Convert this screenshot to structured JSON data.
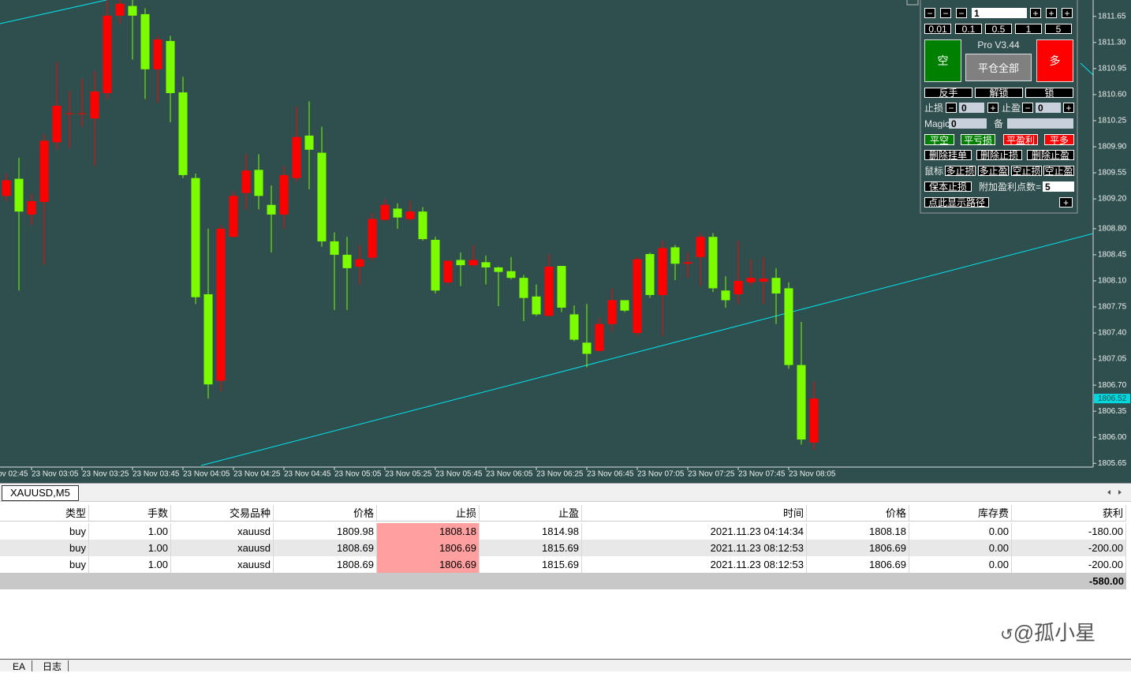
{
  "chart_data": {
    "type": "candlestick",
    "up_color": "#ff0000",
    "down_color": "#7cfc00",
    "ylim": [
      1805.6,
      1811.87
    ],
    "xlim": [
      -0.5,
      86.125
    ],
    "yticks": [
      {
        "value": 1811.65,
        "label": "1811.65"
      },
      {
        "value": 1811.3,
        "label": "1811.30"
      },
      {
        "value": 1810.95,
        "label": "1810.95"
      },
      {
        "value": 1810.6,
        "label": "1810.60"
      },
      {
        "value": 1810.25,
        "label": "1810.25"
      },
      {
        "value": 1809.9,
        "label": "1809.90"
      },
      {
        "value": 1809.55,
        "label": "1809.55"
      },
      {
        "value": 1809.2,
        "label": "1809.20"
      },
      {
        "value": 1808.8,
        "label": "1808.80"
      },
      {
        "value": 1808.45,
        "label": "1808.45"
      },
      {
        "value": 1808.1,
        "label": "1808.10"
      },
      {
        "value": 1807.75,
        "label": "1807.75"
      },
      {
        "value": 1807.4,
        "label": "1807.40"
      },
      {
        "value": 1807.05,
        "label": "1807.05"
      },
      {
        "value": 1806.7,
        "label": "1806.70"
      },
      {
        "value": 1806.35,
        "label": "1806.35"
      },
      {
        "value": 1806.0,
        "label": "1806.00"
      },
      {
        "value": 1805.65,
        "label": "1805.65"
      }
    ],
    "xticks": [
      {
        "value": -2,
        "label": "23 Nov 02:45"
      },
      {
        "value": 2,
        "label": "23 Nov 03:05"
      },
      {
        "value": 6,
        "label": "23 Nov 03:25"
      },
      {
        "value": 10,
        "label": "23 Nov 03:45"
      },
      {
        "value": 14,
        "label": "23 Nov 04:05"
      },
      {
        "value": 18,
        "label": "23 Nov 04:25"
      },
      {
        "value": 22,
        "label": "23 Nov 04:45"
      },
      {
        "value": 26,
        "label": "23 Nov 05:05"
      },
      {
        "value": 30,
        "label": "23 Nov 05:25"
      },
      {
        "value": 34,
        "label": "23 Nov 05:45"
      },
      {
        "value": 38,
        "label": "23 Nov 06:05"
      },
      {
        "value": 42,
        "label": "23 Nov 06:25"
      },
      {
        "value": 46,
        "label": "23 Nov 06:45"
      },
      {
        "value": 50,
        "label": "23 Nov 07:05"
      },
      {
        "value": 54,
        "label": "23 Nov 07:25"
      },
      {
        "value": 58,
        "label": "23 Nov 07:45"
      },
      {
        "value": 62,
        "label": "23 Nov 08:05"
      }
    ],
    "last_price": {
      "value": 1806.52,
      "label": "1806.52"
    },
    "ohlc": [
      [
        1809.24,
        1809.54,
        1809.17,
        1809.45
      ],
      [
        1809.47,
        1809.75,
        1807.97,
        1809.03
      ],
      [
        1808.99,
        1809.27,
        1808.85,
        1809.17
      ],
      [
        1809.16,
        1810.07,
        1808.32,
        1809.98
      ],
      [
        1809.96,
        1811.04,
        1809.86,
        1810.45
      ],
      [
        1810.35,
        1810.65,
        1809.88,
        1810.35
      ],
      [
        1810.34,
        1810.81,
        1810.17,
        1810.35
      ],
      [
        1810.28,
        1810.92,
        1809.64,
        1810.64
      ],
      [
        1810.62,
        1811.9,
        1810.54,
        1811.66
      ],
      [
        1811.66,
        1811.9,
        1811.55,
        1811.82
      ],
      [
        1811.79,
        1811.9,
        1811.07,
        1811.66
      ],
      [
        1811.68,
        1811.76,
        1810.54,
        1810.94
      ],
      [
        1810.94,
        1811.39,
        1810.49,
        1811.34
      ],
      [
        1811.32,
        1811.39,
        1810.23,
        1810.62
      ],
      [
        1810.63,
        1810.84,
        1809.48,
        1809.52
      ],
      [
        1809.48,
        1809.54,
        1807.79,
        1807.88
      ],
      [
        1807.92,
        1808.8,
        1806.52,
        1806.71
      ],
      [
        1806.76,
        1808.85,
        1806.62,
        1808.8
      ],
      [
        1808.69,
        1809.3,
        1808.69,
        1809.24
      ],
      [
        1809.28,
        1809.8,
        1809.06,
        1809.58
      ],
      [
        1809.59,
        1809.8,
        1809.06,
        1809.24
      ],
      [
        1809.12,
        1809.38,
        1808.48,
        1808.99
      ],
      [
        1808.99,
        1809.64,
        1808.8,
        1809.52
      ],
      [
        1809.48,
        1810.44,
        1809.43,
        1810.03
      ],
      [
        1810.05,
        1810.51,
        1809.33,
        1809.86
      ],
      [
        1809.82,
        1810.17,
        1808.56,
        1808.63
      ],
      [
        1808.63,
        1808.75,
        1807.71,
        1808.45
      ],
      [
        1808.45,
        1808.69,
        1807.71,
        1808.27
      ],
      [
        1808.29,
        1808.58,
        1808.05,
        1808.39
      ],
      [
        1808.41,
        1809.01,
        1808.37,
        1808.93
      ],
      [
        1808.92,
        1809.2,
        1808.9,
        1809.12
      ],
      [
        1809.07,
        1809.14,
        1808.8,
        1808.95
      ],
      [
        1808.93,
        1809.17,
        1808.9,
        1809.03
      ],
      [
        1809.03,
        1809.09,
        1808.64,
        1808.66
      ],
      [
        1808.65,
        1808.69,
        1807.93,
        1807.97
      ],
      [
        1808.08,
        1808.37,
        1808.05,
        1808.37
      ],
      [
        1808.38,
        1808.48,
        1808.03,
        1808.31
      ],
      [
        1808.31,
        1808.58,
        1808.29,
        1808.38
      ],
      [
        1808.35,
        1808.44,
        1808.05,
        1808.28
      ],
      [
        1808.28,
        1808.29,
        1807.76,
        1808.22
      ],
      [
        1808.23,
        1808.42,
        1808.12,
        1808.14
      ],
      [
        1808.14,
        1808.18,
        1807.56,
        1807.87
      ],
      [
        1807.89,
        1808.05,
        1807.63,
        1807.65
      ],
      [
        1807.63,
        1808.46,
        1807.63,
        1808.29
      ],
      [
        1808.3,
        1808.3,
        1807.68,
        1807.74
      ],
      [
        1807.65,
        1807.77,
        1807.29,
        1807.31
      ],
      [
        1807.27,
        1807.79,
        1806.94,
        1807.12
      ],
      [
        1807.16,
        1807.6,
        1807.15,
        1807.52
      ],
      [
        1807.52,
        1808.0,
        1807.42,
        1807.84
      ],
      [
        1807.84,
        1807.84,
        1807.68,
        1807.7
      ],
      [
        1807.4,
        1808.42,
        1807.36,
        1808.39
      ],
      [
        1808.46,
        1808.48,
        1807.87,
        1807.91
      ],
      [
        1807.91,
        1808.64,
        1807.36,
        1808.54
      ],
      [
        1808.55,
        1808.58,
        1808.11,
        1808.33
      ],
      [
        1808.33,
        1808.48,
        1808.14,
        1808.35
      ],
      [
        1808.42,
        1808.74,
        1808.03,
        1808.69
      ],
      [
        1808.69,
        1808.74,
        1807.95,
        1808.0
      ],
      [
        1807.97,
        1808.16,
        1807.74,
        1807.84
      ],
      [
        1807.92,
        1808.64,
        1807.79,
        1808.1
      ],
      [
        1808.08,
        1808.39,
        1808.03,
        1808.14
      ],
      [
        1808.09,
        1808.42,
        1807.79,
        1808.13
      ],
      [
        1808.14,
        1808.27,
        1807.52,
        1807.93
      ],
      [
        1808.0,
        1808.08,
        1806.92,
        1806.97
      ],
      [
        1806.97,
        1807.55,
        1805.9,
        1805.97
      ],
      [
        1805.93,
        1806.75,
        1805.83,
        1806.52
      ]
    ]
  },
  "panel": {
    "items": [
      "−",
      "−",
      "−",
      "1",
      "+",
      "+",
      "+",
      "0.01",
      "0.1",
      "0.5",
      "1",
      "5",
      "空",
      "Pro V3.44",
      "平仓全部",
      "多",
      "反手",
      "解锁",
      "锁",
      "止损",
      "−",
      "0",
      "+",
      "止盈",
      "−",
      "0",
      "+",
      "Magic",
      "0",
      "备",
      "平空",
      "平亏损",
      "平盈利",
      "平多",
      "删除挂单",
      "删除止损",
      "删除止盈",
      "鼠标",
      "多止损",
      "多止盈",
      "空止损",
      "空止盈",
      "保本止损",
      "附加盈利点数=",
      "5",
      "点此显示路径",
      "+"
    ]
  },
  "terminal": {
    "tab": "XAUUSD,M5",
    "table": {
      "headers": [
        "类型",
        "手数",
        "交易品种",
        "价格",
        "止损",
        "止盈",
        "时间",
        "价格",
        "库存费",
        "获利"
      ],
      "rows": [
        [
          "buy",
          "1.00",
          "xauusd",
          "1809.98",
          "1808.18",
          "1814.98",
          "2021.11.23 04:14:34",
          "1808.18",
          "0.00",
          "-180.00"
        ],
        [
          "buy",
          "1.00",
          "xauusd",
          "1808.69",
          "1806.69",
          "1815.69",
          "2021.11.23 08:12:53",
          "1806.69",
          "0.00",
          "-200.00"
        ],
        [
          "buy",
          "1.00",
          "xauusd",
          "1808.69",
          "1806.69",
          "1815.69",
          "2021.11.23 08:12:53",
          "1806.69",
          "0.00",
          "-200.00"
        ]
      ],
      "total": "-580.00"
    },
    "bottom_tabs": [
      "EA",
      "日志"
    ]
  },
  "watermark": "@孤小星"
}
